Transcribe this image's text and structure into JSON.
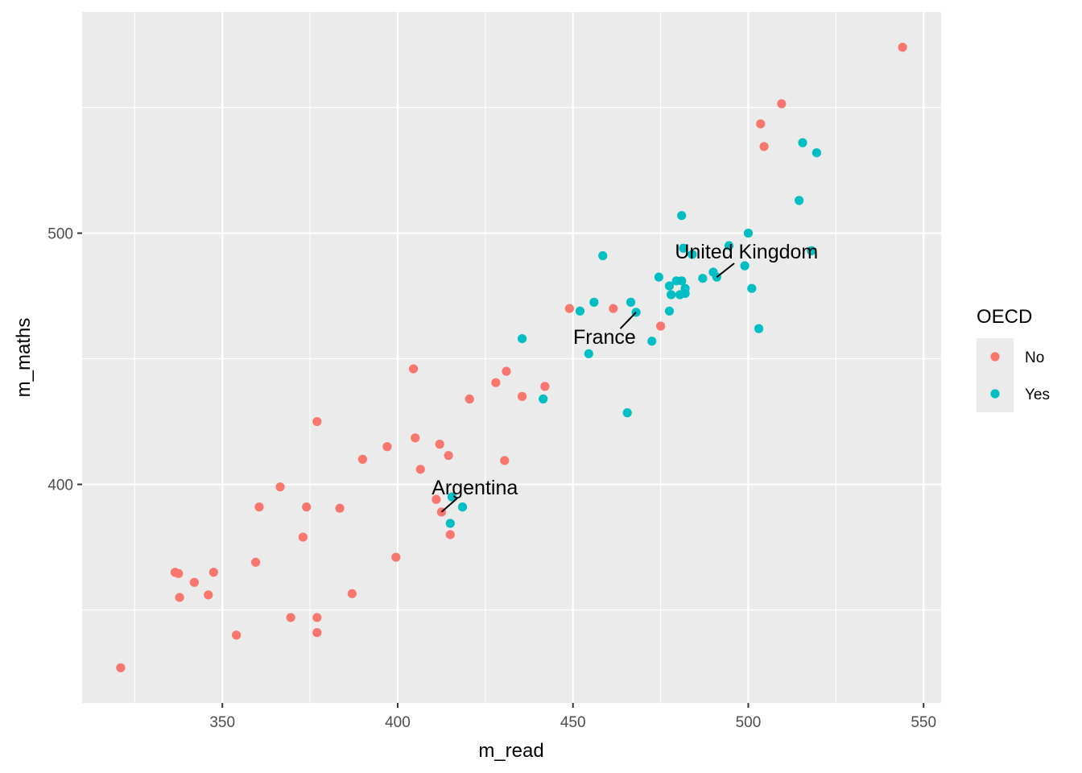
{
  "chart_data": {
    "type": "scatter",
    "title": "",
    "xlabel": "m_read",
    "ylabel": "m_maths",
    "xlim": [
      310,
      555
    ],
    "ylim": [
      313,
      588
    ],
    "x_ticks": [
      350,
      400,
      450,
      500,
      550
    ],
    "y_ticks": [
      400,
      500
    ],
    "grid": true,
    "legend": {
      "title": "OECD",
      "placement": "right",
      "entries": [
        {
          "label": "No",
          "color": "#F8766D"
        },
        {
          "label": "Yes",
          "color": "#00BFC4"
        }
      ]
    },
    "series": [
      {
        "name": "No",
        "color": "#F8766D",
        "points": [
          [
            321,
            327
          ],
          [
            336.5,
            365
          ],
          [
            337.5,
            364.5
          ],
          [
            337.8,
            355
          ],
          [
            342,
            361
          ],
          [
            346,
            356
          ],
          [
            347.5,
            365
          ],
          [
            354,
            340
          ],
          [
            359.5,
            369
          ],
          [
            360.5,
            391
          ],
          [
            366.5,
            399
          ],
          [
            369.5,
            347
          ],
          [
            373,
            379
          ],
          [
            374,
            391
          ],
          [
            377,
            341
          ],
          [
            377,
            347
          ],
          [
            377,
            425
          ],
          [
            383.5,
            390.5
          ],
          [
            387,
            356.5
          ],
          [
            390,
            410
          ],
          [
            397,
            415
          ],
          [
            399.5,
            371
          ],
          [
            404.5,
            446
          ],
          [
            405,
            418.5
          ],
          [
            406.5,
            406
          ],
          [
            411,
            394
          ],
          [
            412,
            416
          ],
          [
            412.5,
            389
          ],
          [
            414.5,
            411.5
          ],
          [
            415,
            380
          ],
          [
            420.5,
            434
          ],
          [
            428,
            440.5
          ],
          [
            430.5,
            409.5
          ],
          [
            431,
            445
          ],
          [
            435.5,
            435
          ],
          [
            442,
            439
          ],
          [
            449,
            470
          ],
          [
            461.5,
            470
          ],
          [
            475,
            463
          ],
          [
            503.5,
            543.5
          ],
          [
            504.5,
            534.5
          ],
          [
            509.5,
            551.5
          ],
          [
            544,
            574
          ]
        ]
      },
      {
        "name": "Yes",
        "color": "#00BFC4",
        "points": [
          [
            415,
            384.5
          ],
          [
            415.5,
            395
          ],
          [
            418.5,
            391
          ],
          [
            435.5,
            458
          ],
          [
            441.5,
            434
          ],
          [
            452,
            469
          ],
          [
            454.5,
            452
          ],
          [
            456,
            472.5
          ],
          [
            458.5,
            491
          ],
          [
            465.5,
            428.5
          ],
          [
            466.5,
            472.5
          ],
          [
            468,
            468.5
          ],
          [
            472.5,
            457
          ],
          [
            474.5,
            482.5
          ],
          [
            477.5,
            469
          ],
          [
            477.5,
            479
          ],
          [
            478,
            475.5
          ],
          [
            479.5,
            481
          ],
          [
            480.5,
            475.5
          ],
          [
            481,
            481
          ],
          [
            481,
            507
          ],
          [
            481.5,
            494
          ],
          [
            482,
            476
          ],
          [
            482,
            478
          ],
          [
            484,
            491.5
          ],
          [
            487,
            482
          ],
          [
            490,
            484.5
          ],
          [
            491,
            482.5
          ],
          [
            494.5,
            495
          ],
          [
            499,
            487
          ],
          [
            500,
            500
          ],
          [
            501,
            478
          ],
          [
            503,
            462
          ],
          [
            514.5,
            513
          ],
          [
            515.5,
            536
          ],
          [
            518,
            493
          ],
          [
            519.5,
            532
          ]
        ]
      }
    ],
    "annotations": [
      {
        "label": "United Kingdom",
        "point": [
          491,
          482.5
        ],
        "text_at": [
          499.5,
          490
        ],
        "line_to": [
          496,
          488
        ]
      },
      {
        "label": "France",
        "point": [
          468,
          468.5
        ],
        "text_at": [
          459,
          456
        ],
        "line_to": [
          463.5,
          462
        ]
      },
      {
        "label": "Argentina",
        "point": [
          412.5,
          389
        ],
        "text_at": [
          422,
          396
        ],
        "line_to": [
          417,
          394.5
        ]
      }
    ]
  }
}
